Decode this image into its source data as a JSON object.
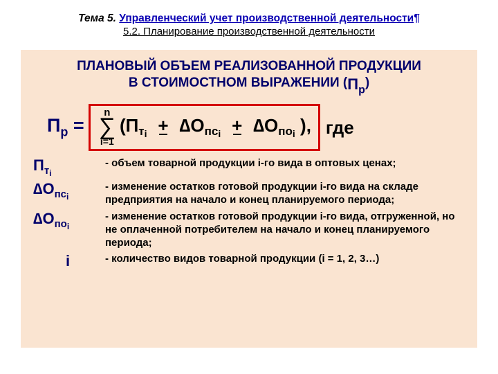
{
  "header": {
    "topic_prefix": "Тема 5.",
    "topic_title": "Управленческий учет производственной деятельности",
    "pilcrow": "¶",
    "subtitle": "5.2. Планирование производственной деятельности"
  },
  "content": {
    "title_line1": "ПЛАНОВЫЙ ОБЪЕМ РЕАЛИЗОВАННОЙ ПРОДУКЦИИ",
    "title_line2_a": "В СТОИМОСТНОМ ВЫРАЖЕНИИ (",
    "title_line2_b": ")",
    "title_symbol_main": "П",
    "title_symbol_sub": "р",
    "formula": {
      "lhs_main": "П",
      "lhs_sub": "р",
      "equals": " = ",
      "sum_top": "n",
      "sum_bottom": "i=1",
      "open": "(",
      "t1_main": "П",
      "t1_sub": "т",
      "t1_subsub": "i",
      "plus1": "+",
      "delta": "∆",
      "t2_main": "О",
      "t2_sub": "пс",
      "t2_subsub": "i",
      "plus2": "+",
      "t3_main": "О",
      "t3_sub": "по",
      "t3_subsub": "i",
      "close": " ),",
      "tail": " где"
    },
    "defs": [
      {
        "sym_html": "П<span class='dsub'>т</span><span class='dsubsub'>i</span>",
        "text": "- объем товарной продукции i-го вида в оптовых ценах;"
      },
      {
        "sym_html": "∆О<span class='dsub'>пс</span><span class='dsubsub'>i</span>",
        "text": "- изменение остатков готовой продукции i-го вида на складе предприятия на начало и конец планируемого периода;"
      },
      {
        "sym_html": "∆О<span class='dsub'>по</span><span class='dsubsub'>i</span>",
        "text": "- изменение остатков готовой продукции i-го вида, отгруженной, но не оплаченной потребителем на начало и конец планируемого периода;"
      },
      {
        "sym_html": "i",
        "text": "- количество видов товарной продукции (i = 1, 2, 3…)"
      }
    ]
  },
  "colors": {
    "bg_box": "#fae4d1",
    "border_formula": "#d40000",
    "navy": "#00006b",
    "link": "#0a00b3"
  }
}
